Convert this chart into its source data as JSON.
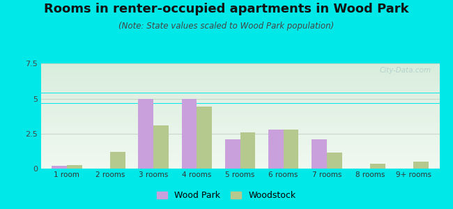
{
  "title": "Rooms in renter-occupied apartments in Wood Park",
  "subtitle": "(Note: State values scaled to Wood Park population)",
  "categories": [
    "1 room",
    "2 rooms",
    "3 rooms",
    "4 rooms",
    "5 rooms",
    "6 rooms",
    "7 rooms",
    "8 rooms",
    "9+ rooms"
  ],
  "wood_park": [
    0.2,
    0.0,
    5.0,
    5.0,
    2.1,
    2.8,
    2.1,
    0.0,
    0.0
  ],
  "woodstock": [
    0.25,
    1.2,
    3.1,
    4.4,
    2.6,
    2.8,
    1.15,
    0.35,
    0.5
  ],
  "wood_park_color": "#c9a0dc",
  "woodstock_color": "#b5c98e",
  "ylim": [
    0,
    7.5
  ],
  "yticks": [
    0,
    2.5,
    5,
    7.5
  ],
  "background_color": "#00e8e8",
  "title_fontsize": 13,
  "subtitle_fontsize": 8.5,
  "bar_width": 0.35,
  "grid_color": "#c8d8c8"
}
